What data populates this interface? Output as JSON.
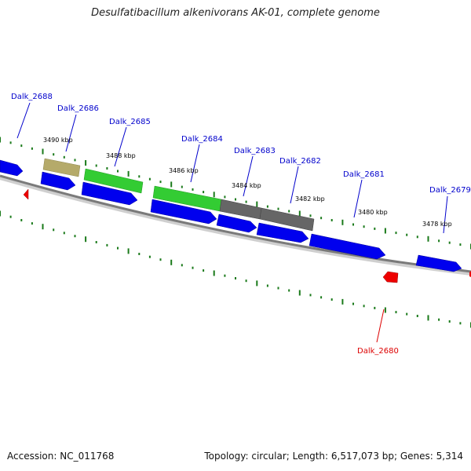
{
  "title": "Desulfatibacillum alkenivorans AK-01, complete genome",
  "footer": {
    "accession": "Accession: NC_011768",
    "summary": "Topology: circular; Length: 6,517,073 bp; Genes: 5,314"
  },
  "colors": {
    "forward_cds": "#0000ee",
    "reverse_cds": "#ee0000",
    "blast_green": "#33cc33",
    "blast_tan": "#b5aa6a",
    "blast_gray": "#666666",
    "backbone": "#808080",
    "ticks": "#1a7a1a",
    "label_forward": "#0000cc",
    "label_reverse": "#dd0000"
  },
  "gene_labels": [
    {
      "text": "Dalk_2688",
      "strand": "forward"
    },
    {
      "text": "Dalk_2686",
      "strand": "forward"
    },
    {
      "text": "Dalk_2685",
      "strand": "forward"
    },
    {
      "text": "Dalk_2684",
      "strand": "forward"
    },
    {
      "text": "Dalk_2683",
      "strand": "forward"
    },
    {
      "text": "Dalk_2682",
      "strand": "forward"
    },
    {
      "text": "Dalk_2681",
      "strand": "forward"
    },
    {
      "text": "Dalk_2679",
      "strand": "forward"
    },
    {
      "text": "Dalk_2680",
      "strand": "reverse"
    }
  ],
  "kbp_labels": [
    "3490 kbp",
    "3488 kbp",
    "3486 kbp",
    "3484 kbp",
    "3482 kbp",
    "3480 kbp",
    "3478 kbp"
  ]
}
